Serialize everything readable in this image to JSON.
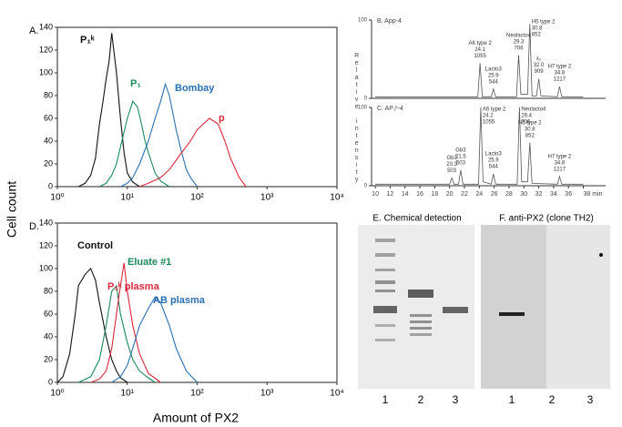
{
  "labels": {
    "y": "Cell count",
    "x": "Amount of PX2"
  },
  "chart_data": [
    {
      "type": "line",
      "title": "A.",
      "log_x": true,
      "frame": true,
      "xlim": [
        1,
        10000
      ],
      "ylim": [
        0,
        140
      ],
      "xticks": [
        {
          "value": 1,
          "label": "10⁰"
        },
        {
          "value": 10,
          "label": "10¹"
        },
        {
          "value": 100,
          "label": "10²"
        },
        {
          "value": 1000,
          "label": "10³"
        },
        {
          "value": 10000,
          "label": "10⁴"
        }
      ],
      "yticks": [
        0,
        20,
        40,
        60,
        80,
        100,
        120,
        140
      ],
      "series": [
        {
          "name": "P₁ᵏ",
          "color": "#111111",
          "x": [
            2,
            2.5,
            3,
            3.5,
            4,
            4.5,
            5,
            5.5,
            6,
            7,
            8,
            9,
            10,
            12,
            15
          ],
          "values": [
            0,
            3,
            10,
            25,
            55,
            75,
            95,
            110,
            135,
            100,
            60,
            30,
            12,
            4,
            0
          ]
        },
        {
          "name": "P₁",
          "color": "#1a8a5a",
          "x": [
            4,
            5,
            6,
            7,
            8,
            10,
            12,
            14,
            16,
            18,
            20,
            25,
            30,
            40
          ],
          "values": [
            0,
            3,
            10,
            20,
            35,
            60,
            75,
            70,
            55,
            40,
            30,
            12,
            5,
            0
          ]
        },
        {
          "name": "Bombay",
          "color": "#2a6fb0",
          "x": [
            8,
            10,
            12,
            15,
            20,
            25,
            30,
            35,
            40,
            50,
            60,
            70,
            80,
            100
          ],
          "values": [
            0,
            3,
            8,
            20,
            40,
            60,
            75,
            90,
            80,
            50,
            30,
            15,
            8,
            0
          ]
        },
        {
          "name": "p",
          "color": "#d9283a",
          "x": [
            15,
            20,
            30,
            40,
            60,
            80,
            100,
            150,
            200,
            250,
            300,
            400,
            500
          ],
          "values": [
            0,
            3,
            8,
            15,
            30,
            40,
            50,
            60,
            55,
            40,
            25,
            8,
            0
          ]
        }
      ]
    },
    {
      "type": "line",
      "title": "D.",
      "log_x": true,
      "frame": true,
      "xlim": [
        1,
        10000
      ],
      "ylim": [
        0,
        140
      ],
      "xticks": [
        {
          "value": 1,
          "label": "10⁰"
        },
        {
          "value": 10,
          "label": "10¹"
        },
        {
          "value": 100,
          "label": "10²"
        },
        {
          "value": 1000,
          "label": "10³"
        },
        {
          "value": 10000,
          "label": "10⁴"
        }
      ],
      "yticks": [
        0,
        20,
        40,
        60,
        80,
        100,
        120,
        140
      ],
      "series": [
        {
          "name": "Control",
          "color": "#111111",
          "x": [
            1,
            1.2,
            1.5,
            1.8,
            2,
            2.5,
            3,
            3.5,
            4,
            5,
            6,
            7,
            8,
            10
          ],
          "values": [
            0,
            5,
            25,
            60,
            85,
            95,
            100,
            90,
            70,
            40,
            20,
            10,
            4,
            0
          ]
        },
        {
          "name": "Eluate #1",
          "color": "#1a8a5a",
          "x": [
            2,
            3,
            4,
            5,
            6,
            7,
            8,
            10,
            12,
            15,
            20,
            25
          ],
          "values": [
            0,
            5,
            20,
            50,
            80,
            85,
            60,
            35,
            20,
            10,
            4,
            0
          ]
        },
        {
          "name": "P₁ᵏ plasma",
          "color": "#d9283a",
          "x": [
            3,
            4,
            5,
            6,
            7,
            8,
            9,
            10,
            12,
            15,
            20,
            30
          ],
          "values": [
            0,
            3,
            10,
            30,
            60,
            85,
            105,
            80,
            50,
            25,
            8,
            0
          ]
        },
        {
          "name": "AB plasma",
          "color": "#2a6fb0",
          "x": [
            6,
            8,
            10,
            12,
            15,
            20,
            25,
            30,
            40,
            50,
            70,
            100
          ],
          "values": [
            0,
            5,
            15,
            30,
            50,
            65,
            75,
            70,
            50,
            30,
            10,
            0
          ]
        }
      ]
    },
    {
      "type": "chromatogram",
      "title": "B. App-4",
      "xlim": [
        9.5,
        41
      ],
      "ylim": [
        0,
        100
      ],
      "yticks": [
        0,
        100
      ],
      "series": [
        {
          "color": "#555555",
          "x": [
            10,
            23.8,
            24.1,
            24.4,
            25.6,
            25.9,
            26.2,
            29.0,
            29.3,
            29.6,
            30.5,
            30.8,
            31.1,
            31.7,
            32.0,
            32.3,
            34.5,
            34.8,
            35.1,
            38
          ],
          "values": [
            2,
            2,
            45,
            2,
            2,
            12,
            2,
            2,
            55,
            5,
            5,
            95,
            3,
            3,
            25,
            3,
            2,
            15,
            2,
            2
          ]
        }
      ],
      "annotations": [
        {
          "x": 24.1,
          "y": 45,
          "lines": [
            "A6 type 2",
            "24.1",
            "1055"
          ]
        },
        {
          "x": 25.9,
          "y": 12,
          "lines": [
            "Lacto3",
            "25.9",
            "544"
          ]
        },
        {
          "x": 29.3,
          "y": 55,
          "lines": [
            "Neolacto4",
            "29.3",
            "706"
          ]
        },
        {
          "x": 30.8,
          "y": 95,
          "lines": [
            "H5 type 2",
            "30.8",
            "852"
          ]
        },
        {
          "x": 32.0,
          "y": 25,
          "lines": [
            "x₂",
            "32.0",
            "909"
          ]
        },
        {
          "x": 34.8,
          "y": 15,
          "lines": [
            "H7 type 2",
            "34.8",
            "1217"
          ]
        }
      ]
    },
    {
      "type": "chromatogram",
      "title": "C. AP₁ᵏ-4",
      "ylabel": "Relative intensity",
      "xlim": [
        9.5,
        41
      ],
      "ylim": [
        0,
        100
      ],
      "yticks": [
        0,
        100
      ],
      "xticks": [
        10,
        12,
        14,
        16,
        18,
        20,
        22,
        24,
        26,
        28,
        30,
        32,
        34,
        36,
        {
          "value": 38,
          "label": "38 min"
        }
      ],
      "series": [
        {
          "color": "#555555",
          "x": [
            10,
            20.0,
            20.3,
            20.6,
            21.2,
            21.5,
            21.8,
            23.9,
            24.2,
            24.5,
            25.6,
            25.9,
            26.2,
            29.1,
            29.4,
            29.7,
            30.5,
            30.8,
            31.1,
            34.5,
            34.8,
            35.1,
            38
          ],
          "values": [
            2,
            2,
            10,
            2,
            2,
            20,
            2,
            2,
            100,
            5,
            2,
            15,
            2,
            2,
            100,
            5,
            5,
            55,
            3,
            2,
            12,
            2,
            2
          ]
        }
      ],
      "annotations": [
        {
          "x": 20.3,
          "y": 10,
          "lines": [
            "Gb3",
            "20.3",
            "503"
          ]
        },
        {
          "x": 21.5,
          "y": 20,
          "lines": [
            "Gb3",
            "21.5",
            "503"
          ]
        },
        {
          "x": 24.2,
          "y": 100,
          "lines": [
            "A6 type 2",
            "24.2",
            "1055"
          ]
        },
        {
          "x": 25.9,
          "y": 15,
          "lines": [
            "Lacto3",
            "25.9",
            "544"
          ]
        },
        {
          "x": 29.4,
          "y": 100,
          "lines": [
            "Neolacto4",
            "29.4",
            "706"
          ]
        },
        {
          "x": 30.8,
          "y": 55,
          "lines": [
            "H5 type 2",
            "30.8",
            "852"
          ]
        },
        {
          "x": 34.8,
          "y": 12,
          "lines": [
            "H7 type 2",
            "34.8",
            "1217"
          ]
        }
      ]
    }
  ],
  "gels": [
    {
      "title": "E. Chemical detection",
      "lanes": [
        "1",
        "2",
        "3"
      ]
    },
    {
      "title": "F. anti-PX2 (clone TH2)",
      "lanes": [
        "1",
        "2",
        "3"
      ]
    }
  ]
}
